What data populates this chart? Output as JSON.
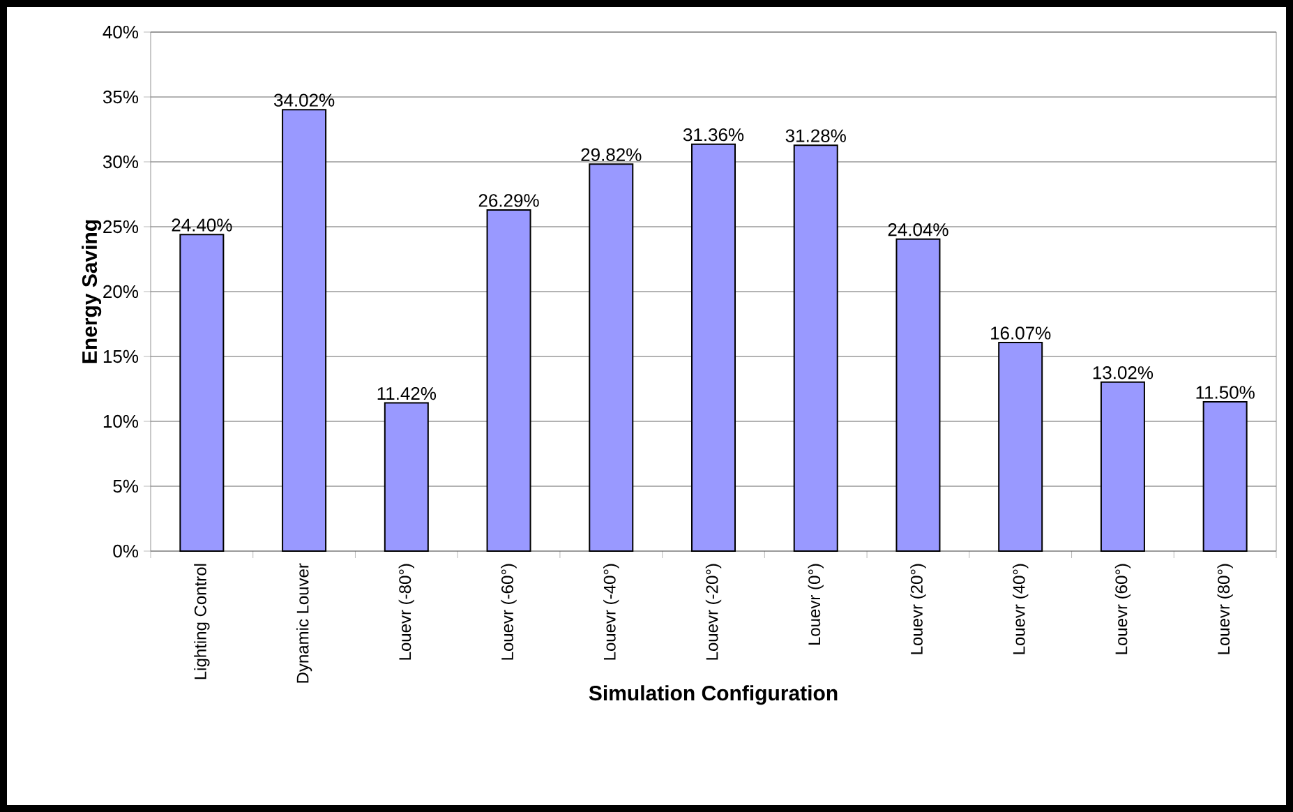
{
  "chart_data": {
    "type": "bar",
    "xlabel": "Simulation Configuration",
    "ylabel": "Energy Saving",
    "categories": [
      "Lighting Control",
      "Dynamic Louver",
      "Louevr (-80°)",
      "Louevr (-60°)",
      "Louevr (-40°)",
      "Louevr (-20°)",
      "Louevr (0°)",
      "Louevr (20°)",
      "Louevr (40°)",
      "Louevr (60°)",
      "Louevr (80°)"
    ],
    "values": [
      24.4,
      34.02,
      11.42,
      26.29,
      29.82,
      31.36,
      31.28,
      24.04,
      16.07,
      13.02,
      11.5
    ],
    "value_labels": [
      "24.40%",
      "34.02%",
      "11.42%",
      "26.29%",
      "29.82%",
      "31.36%",
      "31.28%",
      "24.04%",
      "16.07%",
      "13.02%",
      "11.50%"
    ],
    "color": "#9999ff",
    "ylim": [
      0,
      40
    ],
    "yticks": [
      {
        "value": 0,
        "label": "0%"
      },
      {
        "value": 5,
        "label": "5%"
      },
      {
        "value": 10,
        "label": "10%"
      },
      {
        "value": 15,
        "label": "15%"
      },
      {
        "value": 20,
        "label": "20%"
      },
      {
        "value": 25,
        "label": "25%"
      },
      {
        "value": 30,
        "label": "30%"
      },
      {
        "value": 35,
        "label": "35%"
      },
      {
        "value": 40,
        "label": "40%"
      }
    ],
    "grid": "y"
  }
}
